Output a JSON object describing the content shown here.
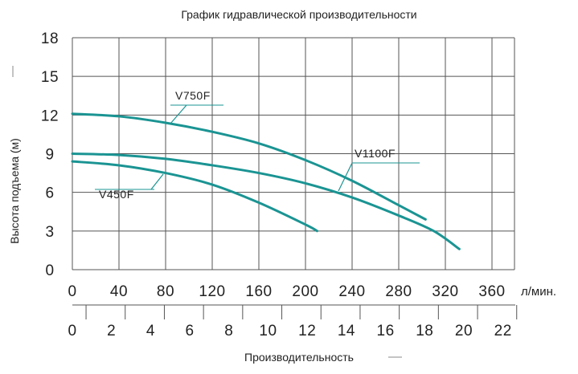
{
  "chart_data": {
    "type": "line",
    "title": "График гидравлической производительности",
    "ylabel": "Высота подъема (м)",
    "xlabel": "Производительность",
    "x_unit": "л/мин.",
    "ylim": [
      0,
      18
    ],
    "xlim": [
      0,
      380
    ],
    "x_ticks": [
      "0",
      "40",
      "80",
      "120",
      "160",
      "200",
      "240",
      "280",
      "320",
      "360"
    ],
    "y_ticks": [
      "0",
      "3",
      "6",
      "9",
      "12",
      "15",
      "18"
    ],
    "x2_ticks": [
      "0",
      "2",
      "4",
      "6",
      "8",
      "10",
      "12",
      "14",
      "16",
      "18",
      "20",
      "22"
    ],
    "grid": true,
    "line_color": "#1a9493",
    "series": [
      {
        "name": "V450F",
        "x": [
          0,
          40,
          80,
          120,
          160,
          200,
          210
        ],
        "y": [
          8.4,
          8.1,
          7.5,
          6.6,
          5.2,
          3.5,
          3.0
        ]
      },
      {
        "name": "V750F",
        "x": [
          0,
          40,
          80,
          120,
          160,
          200,
          240,
          280,
          303
        ],
        "y": [
          12.1,
          11.9,
          11.4,
          10.7,
          9.8,
          8.5,
          6.9,
          5.0,
          3.9
        ]
      },
      {
        "name": "V1100F",
        "x": [
          0,
          40,
          80,
          120,
          160,
          200,
          240,
          280,
          310,
          332
        ],
        "y": [
          9.0,
          8.9,
          8.6,
          8.1,
          7.5,
          6.7,
          5.6,
          4.2,
          3.0,
          1.6
        ]
      }
    ]
  }
}
